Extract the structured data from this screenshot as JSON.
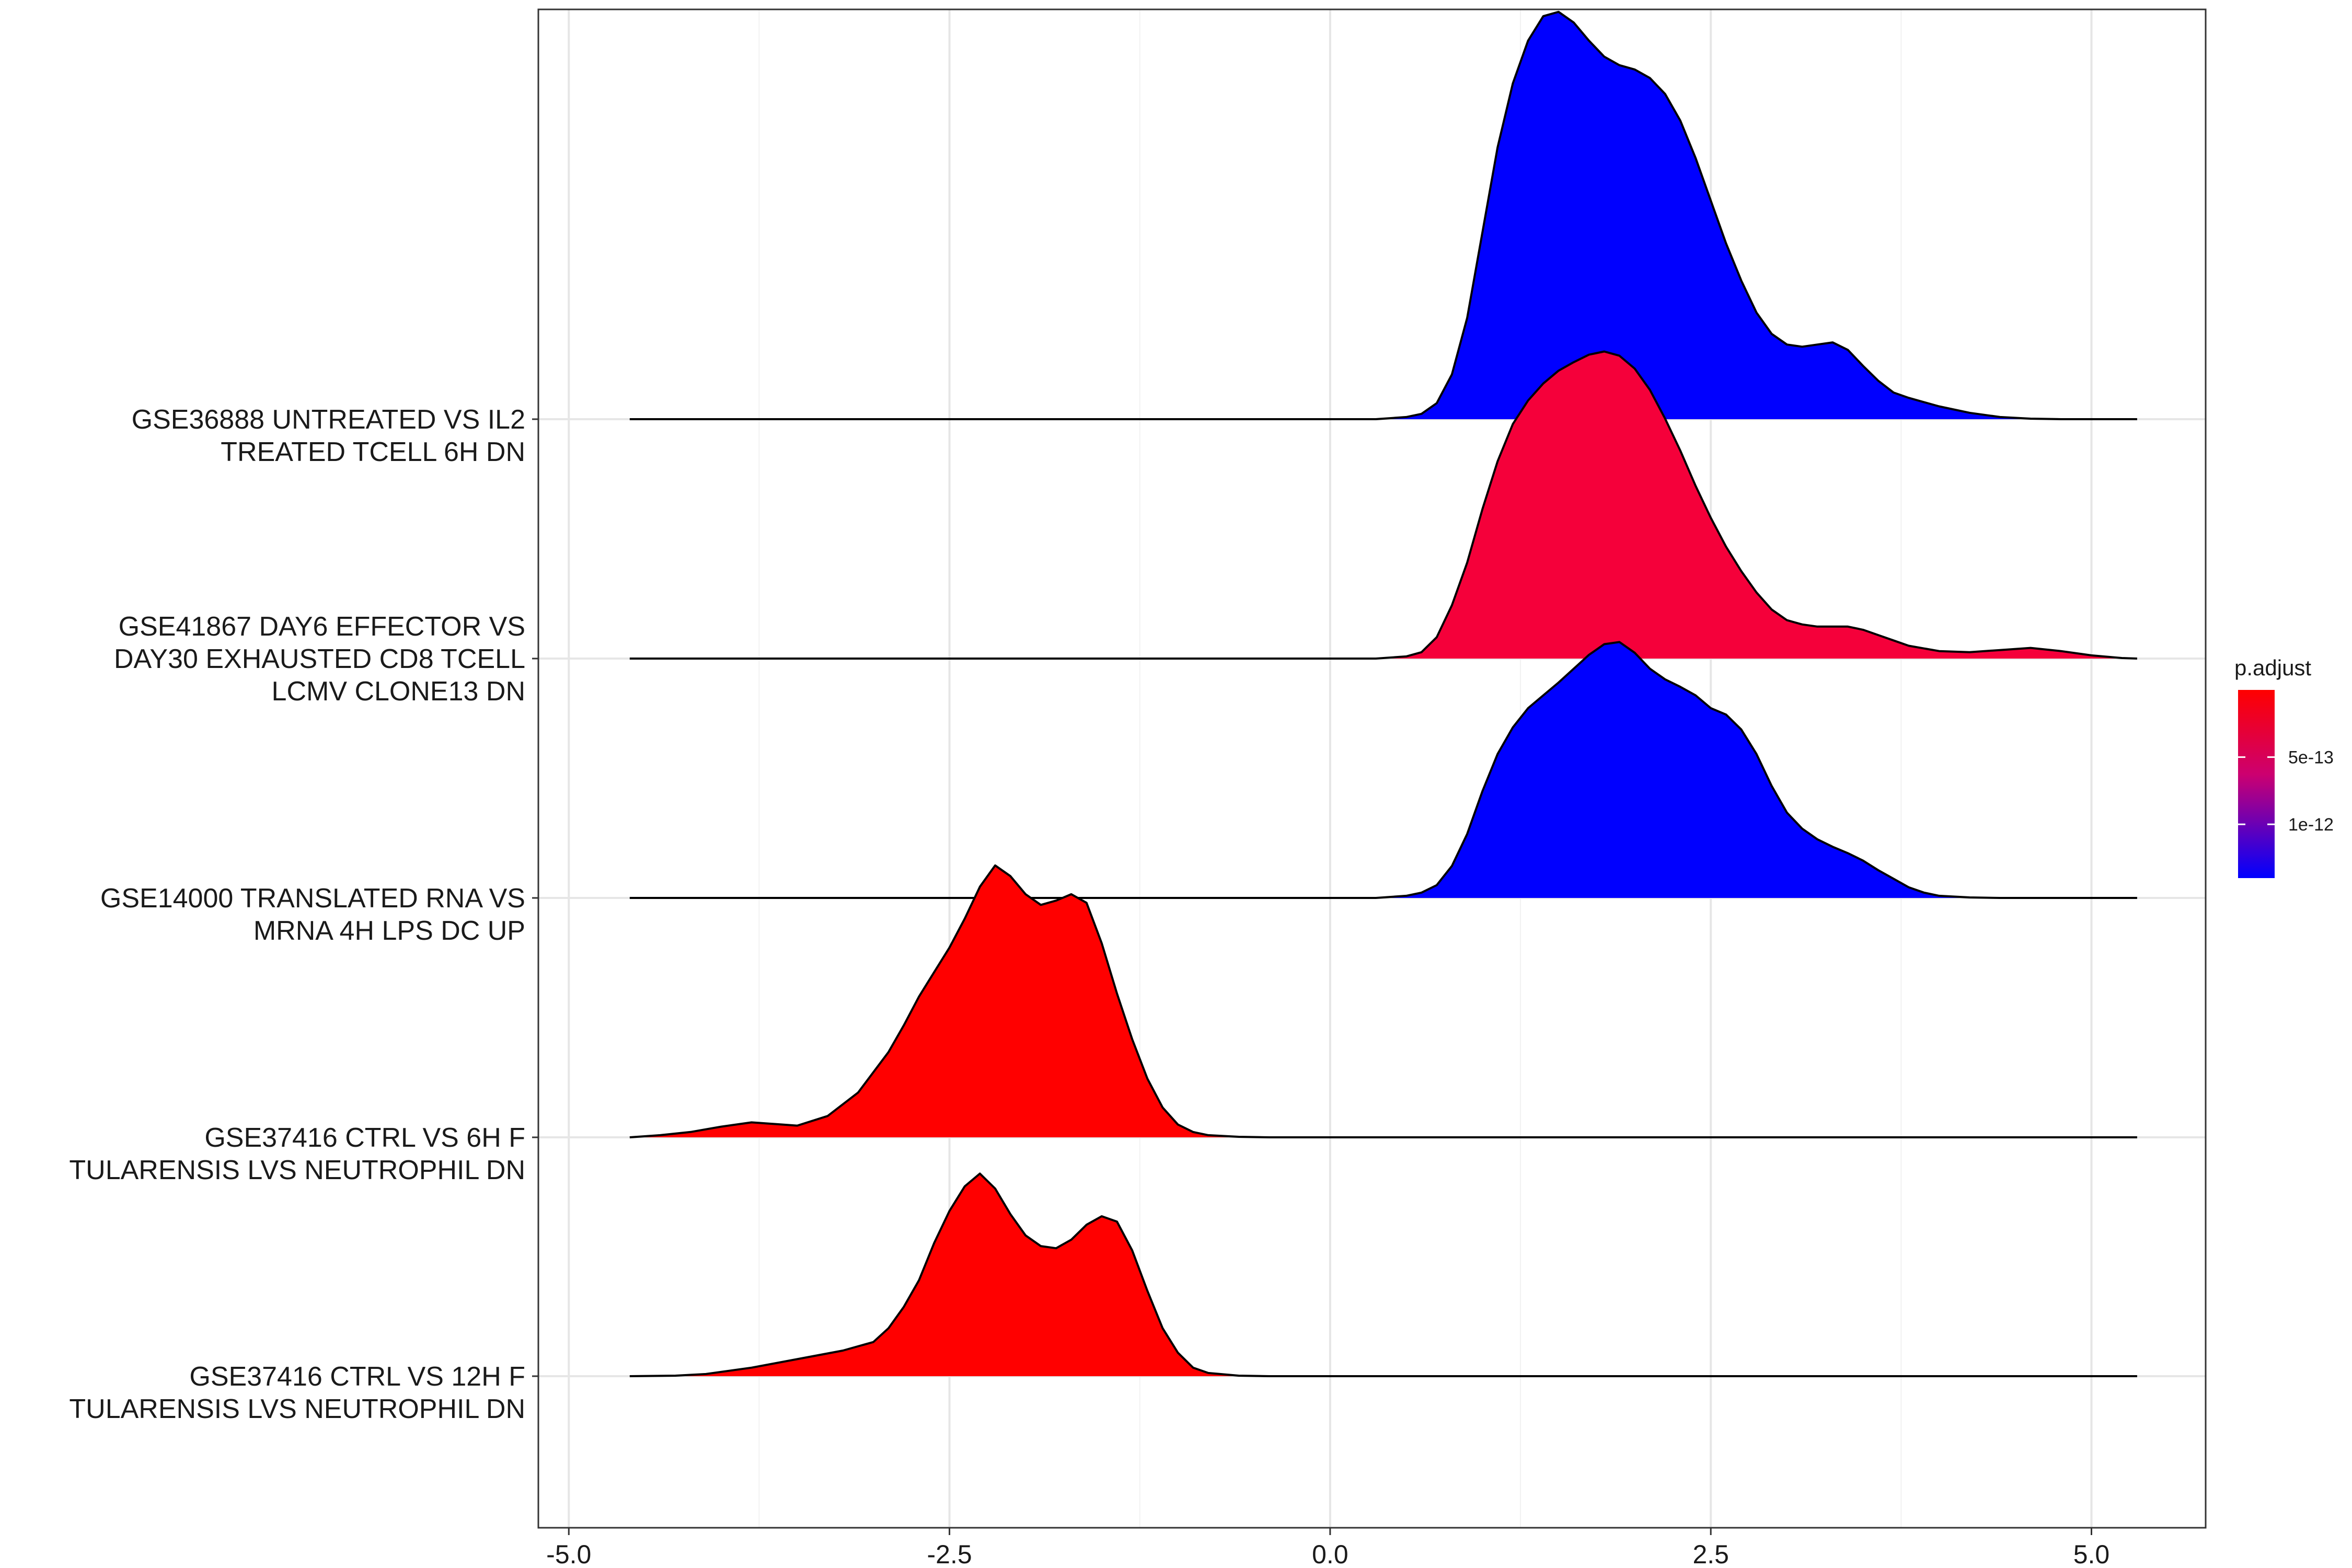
{
  "chart_data": {
    "type": "ridgeline",
    "title": "",
    "xlabel": "",
    "ylabel": "",
    "xlim": [
      -5.2,
      5.75
    ],
    "x_ticks": [
      "-5.0",
      "-2.5",
      "0.0",
      "2.5",
      "5.0"
    ],
    "x_tick_values": [
      -5.0,
      -2.5,
      0.0,
      2.5,
      5.0
    ],
    "grid": true,
    "legend": {
      "title": "p.adjust",
      "placement": "right",
      "type": "colorbar",
      "colors": [
        "#ff0000",
        "#0000ff"
      ],
      "ticks": [
        {
          "label": "5e-13",
          "value": 5e-13
        },
        {
          "label": "1e-12",
          "value": 1e-12
        }
      ],
      "range": [
        0,
        1.4e-12
      ]
    },
    "series": [
      {
        "label_lines": [
          "GSE37416 CTRL VS 12H F",
          "TULARENSIS LVS NEUTROPHIL DN"
        ],
        "color": "#ff0000",
        "x_range": [
          -4.6,
          5.3
        ],
        "density": [
          [
            -4.6,
            0
          ],
          [
            -4.3,
            0.005
          ],
          [
            -4.1,
            0.02
          ],
          [
            -3.8,
            0.08
          ],
          [
            -3.5,
            0.16
          ],
          [
            -3.2,
            0.24
          ],
          [
            -3.0,
            0.32
          ],
          [
            -2.9,
            0.45
          ],
          [
            -2.8,
            0.65
          ],
          [
            -2.7,
            0.9
          ],
          [
            -2.6,
            1.25
          ],
          [
            -2.5,
            1.55
          ],
          [
            -2.4,
            1.78
          ],
          [
            -2.3,
            1.9
          ],
          [
            -2.2,
            1.76
          ],
          [
            -2.1,
            1.52
          ],
          [
            -2.0,
            1.32
          ],
          [
            -1.9,
            1.22
          ],
          [
            -1.8,
            1.2
          ],
          [
            -1.7,
            1.28
          ],
          [
            -1.6,
            1.42
          ],
          [
            -1.5,
            1.5
          ],
          [
            -1.4,
            1.45
          ],
          [
            -1.3,
            1.18
          ],
          [
            -1.2,
            0.8
          ],
          [
            -1.1,
            0.45
          ],
          [
            -1.0,
            0.22
          ],
          [
            -0.9,
            0.08
          ],
          [
            -0.8,
            0.03
          ],
          [
            -0.6,
            0.005
          ],
          [
            -0.4,
            0
          ],
          [
            5.3,
            0
          ]
        ]
      },
      {
        "label_lines": [
          "GSE37416 CTRL VS 6H F",
          "TULARENSIS LVS NEUTROPHIL DN"
        ],
        "color": "#ff0000",
        "x_range": [
          -4.6,
          5.3
        ],
        "density": [
          [
            -4.6,
            0
          ],
          [
            -4.4,
            0.02
          ],
          [
            -4.2,
            0.05
          ],
          [
            -4.0,
            0.1
          ],
          [
            -3.8,
            0.14
          ],
          [
            -3.6,
            0.12
          ],
          [
            -3.5,
            0.11
          ],
          [
            -3.3,
            0.2
          ],
          [
            -3.1,
            0.42
          ],
          [
            -2.9,
            0.8
          ],
          [
            -2.8,
            1.05
          ],
          [
            -2.7,
            1.32
          ],
          [
            -2.6,
            1.55
          ],
          [
            -2.5,
            1.78
          ],
          [
            -2.4,
            2.05
          ],
          [
            -2.3,
            2.35
          ],
          [
            -2.2,
            2.55
          ],
          [
            -2.1,
            2.45
          ],
          [
            -2.0,
            2.28
          ],
          [
            -1.9,
            2.18
          ],
          [
            -1.8,
            2.22
          ],
          [
            -1.7,
            2.28
          ],
          [
            -1.6,
            2.2
          ],
          [
            -1.5,
            1.82
          ],
          [
            -1.4,
            1.35
          ],
          [
            -1.3,
            0.92
          ],
          [
            -1.2,
            0.55
          ],
          [
            -1.1,
            0.28
          ],
          [
            -1.0,
            0.12
          ],
          [
            -0.9,
            0.05
          ],
          [
            -0.8,
            0.02
          ],
          [
            -0.6,
            0.005
          ],
          [
            -0.4,
            0
          ],
          [
            5.3,
            0
          ]
        ]
      },
      {
        "label_lines": [
          "GSE14000 TRANSLATED RNA VS",
          "MRNA 4H LPS DC UP"
        ],
        "color": "#0000ff",
        "x_range": [
          -4.6,
          5.3
        ],
        "density": [
          [
            -4.6,
            0
          ],
          [
            0.3,
            0
          ],
          [
            0.5,
            0.02
          ],
          [
            0.6,
            0.05
          ],
          [
            0.7,
            0.12
          ],
          [
            0.8,
            0.3
          ],
          [
            0.9,
            0.6
          ],
          [
            1.0,
            1.0
          ],
          [
            1.1,
            1.35
          ],
          [
            1.2,
            1.6
          ],
          [
            1.3,
            1.78
          ],
          [
            1.4,
            1.9
          ],
          [
            1.5,
            2.02
          ],
          [
            1.6,
            2.15
          ],
          [
            1.7,
            2.28
          ],
          [
            1.8,
            2.38
          ],
          [
            1.9,
            2.4
          ],
          [
            2.0,
            2.3
          ],
          [
            2.1,
            2.15
          ],
          [
            2.2,
            2.05
          ],
          [
            2.3,
            1.98
          ],
          [
            2.4,
            1.9
          ],
          [
            2.5,
            1.78
          ],
          [
            2.6,
            1.72
          ],
          [
            2.7,
            1.58
          ],
          [
            2.8,
            1.35
          ],
          [
            2.9,
            1.05
          ],
          [
            3.0,
            0.8
          ],
          [
            3.1,
            0.65
          ],
          [
            3.2,
            0.55
          ],
          [
            3.3,
            0.48
          ],
          [
            3.4,
            0.42
          ],
          [
            3.5,
            0.35
          ],
          [
            3.6,
            0.26
          ],
          [
            3.7,
            0.18
          ],
          [
            3.8,
            0.1
          ],
          [
            3.9,
            0.05
          ],
          [
            4.0,
            0.02
          ],
          [
            4.2,
            0.005
          ],
          [
            4.4,
            0
          ],
          [
            5.3,
            0
          ]
        ]
      },
      {
        "label_lines": [
          "GSE41867 DAY6 EFFECTOR VS",
          "DAY30 EXHAUSTED CD8 TCELL",
          "LCMV CLONE13 DN"
        ],
        "color": "#f5003a",
        "x_range": [
          -4.6,
          5.3
        ],
        "density": [
          [
            -4.6,
            0
          ],
          [
            0.3,
            0
          ],
          [
            0.5,
            0.02
          ],
          [
            0.6,
            0.06
          ],
          [
            0.7,
            0.2
          ],
          [
            0.8,
            0.5
          ],
          [
            0.9,
            0.9
          ],
          [
            1.0,
            1.4
          ],
          [
            1.1,
            1.85
          ],
          [
            1.2,
            2.2
          ],
          [
            1.3,
            2.42
          ],
          [
            1.4,
            2.58
          ],
          [
            1.5,
            2.7
          ],
          [
            1.6,
            2.78
          ],
          [
            1.7,
            2.85
          ],
          [
            1.8,
            2.88
          ],
          [
            1.9,
            2.84
          ],
          [
            2.0,
            2.72
          ],
          [
            2.1,
            2.52
          ],
          [
            2.2,
            2.25
          ],
          [
            2.3,
            1.95
          ],
          [
            2.4,
            1.62
          ],
          [
            2.5,
            1.32
          ],
          [
            2.6,
            1.05
          ],
          [
            2.7,
            0.82
          ],
          [
            2.8,
            0.62
          ],
          [
            2.9,
            0.46
          ],
          [
            3.0,
            0.36
          ],
          [
            3.1,
            0.32
          ],
          [
            3.2,
            0.3
          ],
          [
            3.3,
            0.3
          ],
          [
            3.4,
            0.3
          ],
          [
            3.5,
            0.27
          ],
          [
            3.6,
            0.22
          ],
          [
            3.7,
            0.17
          ],
          [
            3.8,
            0.12
          ],
          [
            4.0,
            0.07
          ],
          [
            4.2,
            0.06
          ],
          [
            4.4,
            0.08
          ],
          [
            4.6,
            0.1
          ],
          [
            4.8,
            0.07
          ],
          [
            5.0,
            0.03
          ],
          [
            5.2,
            0.005
          ],
          [
            5.3,
            0
          ]
        ]
      },
      {
        "label_lines": [
          "GSE36888 UNTREATED VS IL2",
          "TREATED TCELL 6H DN"
        ],
        "color": "#0000ff",
        "x_range": [
          -4.6,
          5.3
        ],
        "density": [
          [
            -4.6,
            0
          ],
          [
            0.3,
            0
          ],
          [
            0.5,
            0.02
          ],
          [
            0.6,
            0.05
          ],
          [
            0.7,
            0.15
          ],
          [
            0.8,
            0.42
          ],
          [
            0.9,
            0.95
          ],
          [
            1.0,
            1.75
          ],
          [
            1.1,
            2.55
          ],
          [
            1.2,
            3.15
          ],
          [
            1.3,
            3.55
          ],
          [
            1.4,
            3.78
          ],
          [
            1.5,
            3.82
          ],
          [
            1.6,
            3.72
          ],
          [
            1.7,
            3.55
          ],
          [
            1.8,
            3.4
          ],
          [
            1.9,
            3.32
          ],
          [
            2.0,
            3.28
          ],
          [
            2.1,
            3.2
          ],
          [
            2.2,
            3.05
          ],
          [
            2.3,
            2.8
          ],
          [
            2.4,
            2.45
          ],
          [
            2.5,
            2.05
          ],
          [
            2.6,
            1.65
          ],
          [
            2.7,
            1.3
          ],
          [
            2.8,
            1.0
          ],
          [
            2.9,
            0.8
          ],
          [
            3.0,
            0.7
          ],
          [
            3.1,
            0.68
          ],
          [
            3.2,
            0.7
          ],
          [
            3.3,
            0.72
          ],
          [
            3.4,
            0.65
          ],
          [
            3.5,
            0.5
          ],
          [
            3.6,
            0.36
          ],
          [
            3.7,
            0.25
          ],
          [
            3.8,
            0.2
          ],
          [
            3.9,
            0.16
          ],
          [
            4.0,
            0.12
          ],
          [
            4.2,
            0.06
          ],
          [
            4.4,
            0.02
          ],
          [
            4.6,
            0.005
          ],
          [
            4.8,
            0
          ],
          [
            5.3,
            0
          ]
        ]
      }
    ]
  }
}
